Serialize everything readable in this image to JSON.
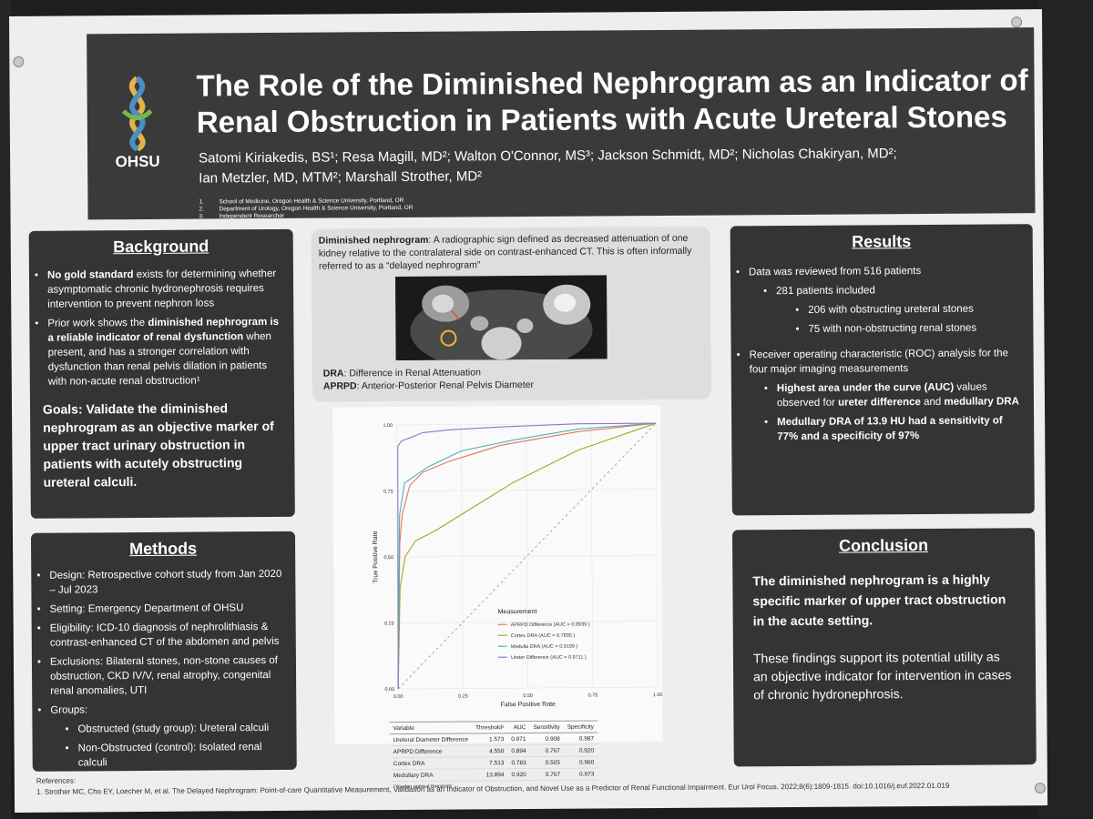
{
  "header": {
    "title": "The Role of the Diminished Nephrogram as an Indicator of Renal Obstruction in Patients with Acute Ureteral Stones",
    "logo_text": "OHSU",
    "authors_line1": "Satomi Kiriakedis, BS¹; Resa Magill, MD²; Walton O'Connor, MS³; Jackson Schmidt, MD²; Nicholas Chakiryan, MD²;",
    "authors_line2": "Ian Metzler, MD, MTM²; Marshall Strother, MD²",
    "affiliations": [
      {
        "num": "1.",
        "text": "School of Medicine, Oregon Health & Science University, Portland, OR"
      },
      {
        "num": "2.",
        "text": "Department of Urology, Oregon Health & Science University, Portland, OR"
      },
      {
        "num": "3.",
        "text": "Independent Researcher"
      }
    ]
  },
  "background": {
    "title": "Background",
    "b1_bold": "No gold standard",
    "b1_rest": " exists for determining whether asymptomatic chronic hydronephrosis requires intervention to prevent nephron loss",
    "b2_start": "Prior work shows the ",
    "b2_bold": "diminished nephrogram is a reliable indicator of renal dysfunction",
    "b2_rest": " when present, and has a stronger correlation with dysfunction than renal pelvis dilation in patients with non-acute renal obstruction¹",
    "goals": "Goals: Validate the diminished nephrogram as an objective marker of upper tract urinary obstruction in patients with acutely obstructing ureteral calculi."
  },
  "methods": {
    "title": "Methods",
    "items": [
      "Design: Retrospective cohort study from Jan 2020 – Jul 2023",
      "Setting: Emergency Department of OHSU",
      "Eligibility: ICD-10 diagnosis of nephrolithiasis & contrast-enhanced CT of the abdomen and pelvis",
      "Exclusions: Bilateral stones, non-stone causes of obstruction, CKD IV/V, renal atrophy, congenital renal anomalies, UTI",
      "Groups:"
    ],
    "groups": [
      "Obstructed (study group): Ureteral calculi",
      "Non-Obstructed (control): Isolated renal calculi"
    ]
  },
  "center": {
    "def_term": "Diminished nephrogram",
    "def_text": ": A radiographic sign defined as decreased attenuation of one kidney relative to the contralateral side on contrast-enhanced CT. This is often informally referred to as a “delayed nephrogram”",
    "dra_term": "DRA",
    "dra_text": ": Difference in Renal Attenuation",
    "aprpd_term": "APRPD",
    "aprpd_text": ": Anterior-Posterior Renal Pelvis Diameter"
  },
  "chart_data": {
    "type": "line",
    "title": "",
    "xlabel": "False Positive Rate",
    "ylabel": "True Positive Rate",
    "xlim": [
      0,
      1
    ],
    "ylim": [
      0,
      1
    ],
    "xticks": [
      "0.00",
      "0.25",
      "0.50",
      "0.75",
      "1.00"
    ],
    "yticks": [
      "0.00",
      "0.25",
      "0.50",
      "0.75",
      "1.00"
    ],
    "legend_title": "Measurement",
    "legend_position": "bottom-right",
    "grid": true,
    "diagonal_reference": true,
    "series": [
      {
        "name": "APRPD Difference  (AUC = 0.8939 )",
        "color": "#e8735a",
        "x": [
          0,
          0.01,
          0.02,
          0.05,
          0.1,
          0.2,
          0.4,
          0.7,
          1.0
        ],
        "y": [
          0,
          0.55,
          0.66,
          0.77,
          0.82,
          0.86,
          0.92,
          0.97,
          1.0
        ]
      },
      {
        "name": "Cortex DRA  (AUC = 0.7835 )",
        "color": "#9aaa2a",
        "x": [
          0,
          0.01,
          0.03,
          0.07,
          0.15,
          0.25,
          0.45,
          0.7,
          1.0
        ],
        "y": [
          0,
          0.38,
          0.5,
          0.56,
          0.6,
          0.66,
          0.78,
          0.9,
          1.0
        ]
      },
      {
        "name": "Medulla DRA  (AUC = 0.9199 )",
        "color": "#4bb5b0",
        "x": [
          0,
          0.01,
          0.03,
          0.06,
          0.12,
          0.25,
          0.45,
          0.7,
          1.0
        ],
        "y": [
          0,
          0.66,
          0.78,
          0.8,
          0.84,
          0.9,
          0.94,
          0.98,
          1.0
        ]
      },
      {
        "name": "Ureter Difference  (AUC = 0.9711 )",
        "color": "#9c70c8",
        "x": [
          0,
          0.005,
          0.02,
          0.05,
          0.1,
          0.2,
          0.4,
          0.7,
          1.0
        ],
        "y": [
          0,
          0.92,
          0.94,
          0.95,
          0.97,
          0.98,
          0.99,
          1.0,
          1.0
        ]
      }
    ]
  },
  "table": {
    "headers": [
      "Variable",
      "Threshold¹",
      "AUC",
      "Sensitivity",
      "Specificity"
    ],
    "rows": [
      [
        "Ureteral Diameter Difference",
        "1.573",
        "0.971",
        "0.908",
        "0.987"
      ],
      [
        "APRPD Difference",
        "4.550",
        "0.894",
        "0.767",
        "0.920"
      ],
      [
        "Cortex DRA",
        "7.513",
        "0.783",
        "0.505",
        "0.960"
      ],
      [
        "Medullary DRA",
        "13.894",
        "0.920",
        "0.767",
        "0.973"
      ]
    ],
    "footnote": "¹Youden optimal threshold"
  },
  "results": {
    "title": "Results",
    "r1": "Data was reviewed from 516 patients",
    "r2": "281 patients included",
    "r3": "206 with obstructing ureteral stones",
    "r4": "75 with non-obstructing renal stones",
    "r5": "Receiver operating characteristic (ROC) analysis for the four major imaging measurements",
    "r6_bold1": "Highest area under the curve (AUC)",
    "r6_mid": " values observed for ",
    "r6_bold2": "ureter difference",
    "r6_and": " and ",
    "r6_bold3": "medullary DRA",
    "r7": "Medullary DRA of 13.9 HU had a sensitivity of 77% and a specificity of 97%"
  },
  "conclusion": {
    "title": "Conclusion",
    "bold": "The diminished nephrogram is a highly specific marker of upper tract obstruction in the acute setting.",
    "text": "These findings support its potential utility as an objective indicator for intervention in cases of chronic hydronephrosis."
  },
  "references": {
    "label": "References:",
    "text": "1. Strother MC, Cho EY, Loecher M, et al. The Delayed Nephrogram: Point-of-care Quantitative Measurement, Validation as an Indicator of Obstruction, and Novel Use as a Predictor of Renal Functional Impairment. Eur Urol Focus. 2022;8(6):1809-1815. doi:10.1016/j.euf.2022.01.019"
  }
}
